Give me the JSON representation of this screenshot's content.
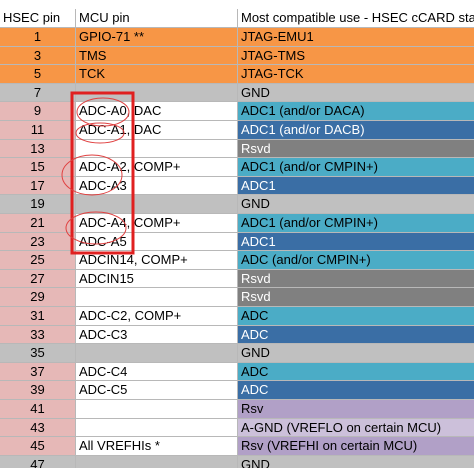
{
  "table": {
    "header": [
      "HSEC pin",
      "MCU pin",
      "Most compatible use - HSEC cCARD stan"
    ],
    "rows": [
      {
        "pin": 1,
        "mcu": "GPIO-71 **",
        "use": "JTAG-EMU1",
        "pin_color": "#f79646",
        "mcu_color": "#f79646",
        "use_color": "#f79646"
      },
      {
        "pin": 3,
        "mcu": "TMS",
        "use": "JTAG-TMS",
        "pin_color": "#f79646",
        "mcu_color": "#f79646",
        "use_color": "#f79646"
      },
      {
        "pin": 5,
        "mcu": "TCK",
        "use": "JTAG-TCK",
        "pin_color": "#f79646",
        "mcu_color": "#f79646",
        "use_color": "#f79646"
      },
      {
        "pin": 7,
        "use": "GND",
        "pin_color": "#c0c0c0",
        "mcu_color": "#c0c0c0",
        "use_color": "#c0c0c0"
      },
      {
        "pin": 9,
        "mcu": "ADC-A0, DAC",
        "use": "ADC1 (and/or DACA)",
        "pin_color": "#e6b8b7",
        "mcu_color": "#ffffff",
        "use_color": "#4bacc6"
      },
      {
        "pin": 11,
        "mcu": "ADC-A1, DAC",
        "use": "ADC1 (and/or DACB)",
        "pin_color": "#e6b8b7",
        "mcu_color": "#ffffff",
        "use_color": "#3a6ea5"
      },
      {
        "pin": 13,
        "use": "Rsvd",
        "pin_color": "#e6b8b7",
        "mcu_color": "#ffffff",
        "use_color": "#808080"
      },
      {
        "pin": 15,
        "mcu": "ADC-A2, COMP+",
        "use": "ADC1 (and/or CMPIN+)",
        "pin_color": "#e6b8b7",
        "mcu_color": "#ffffff",
        "use_color": "#4bacc6"
      },
      {
        "pin": 17,
        "mcu": "ADC-A3",
        "use": "ADC1",
        "pin_color": "#e6b8b7",
        "mcu_color": "#ffffff",
        "use_color": "#3a6ea5"
      },
      {
        "pin": 19,
        "use": "GND",
        "pin_color": "#c0c0c0",
        "mcu_color": "#c0c0c0",
        "use_color": "#c0c0c0"
      },
      {
        "pin": 21,
        "mcu": "ADC-A4, COMP+",
        "use": "ADC1 (and/or CMPIN+)",
        "pin_color": "#e6b8b7",
        "mcu_color": "#ffffff",
        "use_color": "#4bacc6"
      },
      {
        "pin": 23,
        "mcu": "ADC-A5",
        "use": "ADC1",
        "pin_color": "#e6b8b7",
        "mcu_color": "#ffffff",
        "use_color": "#3a6ea5"
      },
      {
        "pin": 25,
        "mcu": "ADCIN14, COMP+",
        "use": "ADC (and/or CMPIN+)",
        "pin_color": "#e6b8b7",
        "mcu_color": "#ffffff",
        "use_color": "#4bacc6"
      },
      {
        "pin": 27,
        "mcu": "ADCIN15",
        "use": "Rsvd",
        "pin_color": "#e6b8b7",
        "mcu_color": "#ffffff",
        "use_color": "#808080"
      },
      {
        "pin": 29,
        "use": "Rsvd",
        "pin_color": "#e6b8b7",
        "mcu_color": "#ffffff",
        "use_color": "#808080"
      },
      {
        "pin": 31,
        "mcu": "ADC-C2, COMP+",
        "use": "ADC",
        "pin_color": "#e6b8b7",
        "mcu_color": "#ffffff",
        "use_color": "#4bacc6"
      },
      {
        "pin": 33,
        "mcu": "ADC-C3",
        "use": "ADC",
        "pin_color": "#e6b8b7",
        "mcu_color": "#ffffff",
        "use_color": "#3a6ea5"
      },
      {
        "pin": 35,
        "use": "GND",
        "pin_color": "#c0c0c0",
        "mcu_color": "#c0c0c0",
        "use_color": "#c0c0c0"
      },
      {
        "pin": 37,
        "mcu": "ADC-C4",
        "use": "ADC",
        "pin_color": "#e6b8b7",
        "mcu_color": "#ffffff",
        "use_color": "#4bacc6"
      },
      {
        "pin": 39,
        "mcu": "ADC-C5",
        "use": "ADC",
        "pin_color": "#e6b8b7",
        "mcu_color": "#ffffff",
        "use_color": "#3a6ea5"
      },
      {
        "pin": 41,
        "use": "Rsv",
        "pin_color": "#e6b8b7",
        "mcu_color": "#ffffff",
        "use_color": "#b1a0c7"
      },
      {
        "pin": 43,
        "use": "A-GND  (VREFLO on certain MCU)",
        "pin_color": "#e6b8b7",
        "mcu_color": "#ffffff",
        "use_color": "#ccc0da"
      },
      {
        "pin": 45,
        "mcu": "All VREFHIs *",
        "use": "Rsv  (VREFHI on certain MCU)",
        "pin_color": "#e6b8b7",
        "mcu_color": "#ffffff",
        "use_color": "#b1a0c7"
      },
      {
        "pin": 47,
        "use": "GND",
        "pin_color": "#c0c0c0",
        "mcu_color": "#c0c0c0",
        "use_color": "#c0c0c0"
      }
    ]
  }
}
